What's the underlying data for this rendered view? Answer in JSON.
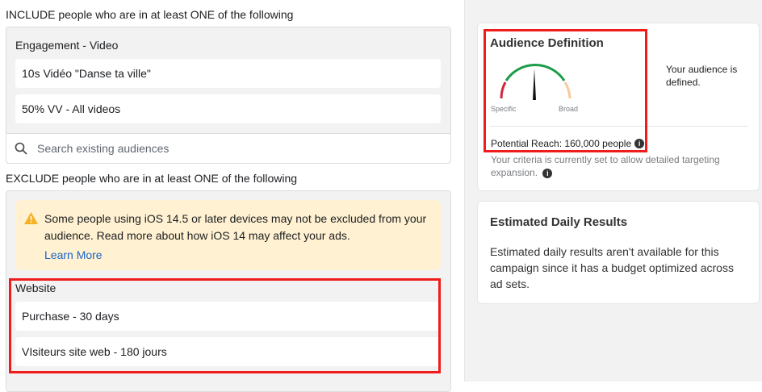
{
  "include": {
    "heading": "INCLUDE people who are in at least ONE of the following",
    "group": "Engagement - Video",
    "items": [
      "10s Vidéo \"Danse ta ville\"",
      "50% VV - All videos"
    ],
    "search_placeholder": "Search existing audiences"
  },
  "exclude": {
    "heading": "EXCLUDE people who are in at least ONE of the following",
    "warning": "Some people using iOS 14.5 or later devices may not be excluded from your audience. Read more about how iOS 14 may affect your ads.",
    "learn_more": "Learn More",
    "group": "Website",
    "items": [
      "Purchase - 30 days",
      "VIsiteurs site web - 180 jours"
    ]
  },
  "audience": {
    "title": "Audience Definition",
    "status": "Your audience is defined.",
    "specific": "Specific",
    "broad": "Broad",
    "reach": "Potential Reach: 160,000 people",
    "note": "Your criteria is currently set to allow detailed targeting expansion.",
    "gauge_level": 0.5
  },
  "daily": {
    "title": "Estimated Daily Results",
    "text": "Estimated daily results aren't available for this campaign since it has a budget optimized across ad sets."
  },
  "colors": {
    "highlight": "#f01c1c",
    "link": "#1b64c8",
    "warning_bg": "#fff1d1",
    "gauge_green": "#1a9c48",
    "gauge_red": "#d0283a",
    "gauge_peach": "#f9c89b"
  }
}
